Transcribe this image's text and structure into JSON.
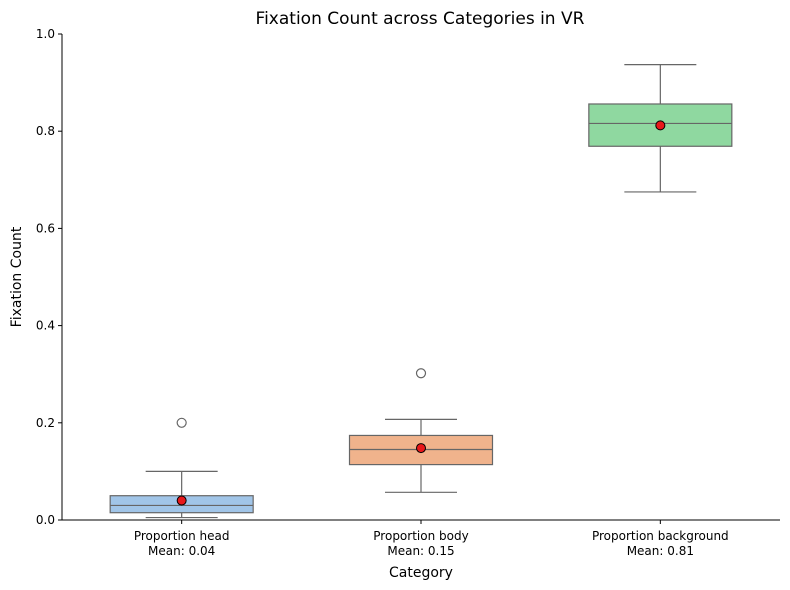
{
  "chart_data": {
    "type": "box",
    "title": "Fixation Count across Categories in VR",
    "xlabel": "Category",
    "ylabel": "Fixation Count",
    "ylim": [
      0,
      1.0
    ],
    "yticks": [
      "0.0",
      "0.2",
      "0.4",
      "0.6",
      "0.8",
      "1.0"
    ],
    "ytick_values": [
      0.0,
      0.2,
      0.4,
      0.6,
      0.8,
      1.0
    ],
    "grid": false,
    "categories": [
      {
        "name": "Proportion head",
        "mean_label": "Mean: 0.04",
        "color": "#a1c5e8",
        "whisker_low": 0.005,
        "q1": 0.015,
        "median": 0.03,
        "q3": 0.05,
        "whisker_high": 0.1,
        "mean": 0.04,
        "outliers": [
          0.2
        ]
      },
      {
        "name": "Proportion body",
        "mean_label": "Mean: 0.15",
        "color": "#f0b38c",
        "whisker_low": 0.057,
        "q1": 0.114,
        "median": 0.145,
        "q3": 0.174,
        "whisker_high": 0.207,
        "mean": 0.148,
        "outliers": [
          0.302
        ]
      },
      {
        "name": "Proportion background",
        "mean_label": "Mean: 0.81",
        "color": "#8fd8a0",
        "whisker_low": 0.675,
        "q1": 0.769,
        "median": 0.816,
        "q3": 0.856,
        "whisker_high": 0.937,
        "mean": 0.812,
        "outliers": []
      }
    ],
    "colors": {
      "edge": "#666666",
      "mean_marker": "#e8181b",
      "mean_marker_edge": "#000000"
    }
  }
}
